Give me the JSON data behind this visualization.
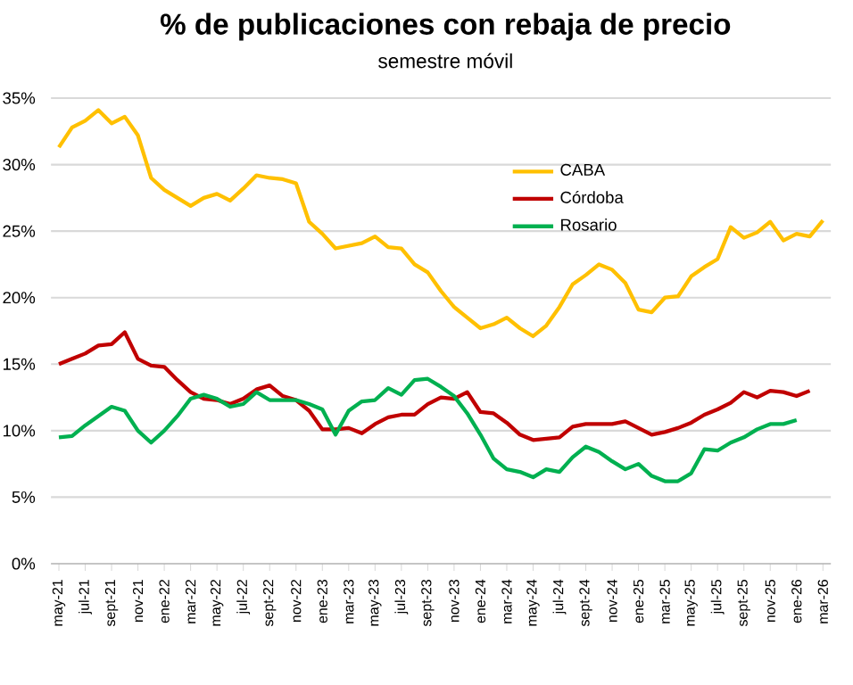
{
  "chart_data": {
    "type": "line",
    "title": "% de publicaciones con rebaja de precio",
    "subtitle": "semestre móvil",
    "categories": [
      "may-21",
      null,
      "jul-21",
      null,
      "sept-21",
      null,
      "nov-21",
      null,
      "ene-22",
      null,
      "mar-22",
      null,
      "may-22",
      null,
      "jul-22",
      null,
      "sept-22",
      null,
      "nov-22",
      null,
      "ene-23",
      null,
      "mar-23",
      null,
      "may-23",
      null,
      "jul-23",
      null,
      "sept-23",
      null,
      "nov-23",
      null,
      "ene-24",
      null,
      "mar-24",
      null,
      "may-24",
      null,
      "jul-24",
      null,
      "sept-24",
      null,
      "nov-24",
      null,
      "ene-25",
      null,
      "mar-25",
      null,
      "may-25",
      null,
      "jul-25",
      null,
      "sept-25",
      null,
      "nov-25",
      null,
      "ene-26",
      null,
      "mar-26"
    ],
    "series": [
      {
        "name": "CABA",
        "color": "#ffc000",
        "values": [
          31.3,
          32.8,
          33.3,
          34.1,
          33.1,
          33.6,
          32.2,
          29.0,
          28.1,
          27.5,
          26.9,
          27.5,
          27.8,
          27.3,
          28.2,
          29.2,
          29.0,
          28.9,
          28.6,
          25.7,
          24.8,
          23.7,
          23.9,
          24.1,
          24.6,
          23.8,
          23.7,
          22.5,
          21.9,
          20.5,
          19.3,
          18.5,
          17.7,
          18.0,
          18.5,
          17.7,
          17.1,
          17.9,
          19.3,
          21.0,
          21.7,
          22.5,
          22.1,
          21.1,
          19.1,
          18.9,
          20.0,
          20.1,
          21.6,
          22.3,
          22.9,
          25.3,
          24.5,
          24.9,
          25.7,
          24.3,
          24.8,
          24.6,
          25.8
        ]
      },
      {
        "name": "Córdoba",
        "color": "#c00000",
        "values": [
          15.0,
          15.4,
          15.8,
          16.4,
          16.5,
          17.4,
          15.4,
          14.9,
          14.8,
          13.8,
          12.9,
          12.4,
          12.3,
          12.0,
          12.4,
          13.1,
          13.4,
          12.6,
          12.3,
          11.5,
          10.1,
          10.1,
          10.2,
          9.8,
          10.5,
          11.0,
          11.2,
          11.2,
          12.0,
          12.5,
          12.4,
          12.9,
          11.4,
          11.3,
          10.6,
          9.7,
          9.3,
          9.4,
          9.5,
          10.3,
          10.5,
          10.5,
          10.5,
          10.7,
          10.2,
          9.7,
          9.9,
          10.2,
          10.6,
          11.2,
          11.6,
          12.1,
          12.9,
          12.5,
          13.0,
          12.9,
          12.6,
          13.0,
          null
        ]
      },
      {
        "name": "Rosario",
        "color": "#00b050",
        "values": [
          9.5,
          9.6,
          10.4,
          11.1,
          11.8,
          11.5,
          10.0,
          9.1,
          10.0,
          11.1,
          12.4,
          12.7,
          12.4,
          11.8,
          12.0,
          12.9,
          12.3,
          12.3,
          12.3,
          12.0,
          11.6,
          9.7,
          11.5,
          12.2,
          12.3,
          13.2,
          12.7,
          13.8,
          13.9,
          13.3,
          12.6,
          11.3,
          9.7,
          7.9,
          7.1,
          6.9,
          6.5,
          7.1,
          6.9,
          8.0,
          8.8,
          8.4,
          7.7,
          7.1,
          7.5,
          6.6,
          6.2,
          6.2,
          6.8,
          8.6,
          8.5,
          9.1,
          9.5,
          10.1,
          10.5,
          10.5,
          10.8,
          null,
          null
        ]
      }
    ],
    "ylim": [
      0,
      35
    ],
    "yticks": [
      {
        "value": 0,
        "label": "0%"
      },
      {
        "value": 5,
        "label": "5%"
      },
      {
        "value": 10,
        "label": "10%"
      },
      {
        "value": 15,
        "label": "15%"
      },
      {
        "value": 20,
        "label": "20%"
      },
      {
        "value": 25,
        "label": "25%"
      },
      {
        "value": 30,
        "label": "30%"
      },
      {
        "value": 35,
        "label": "35%"
      }
    ],
    "grid": "y",
    "legend": "top",
    "marker": "none",
    "line_style": "solid"
  }
}
